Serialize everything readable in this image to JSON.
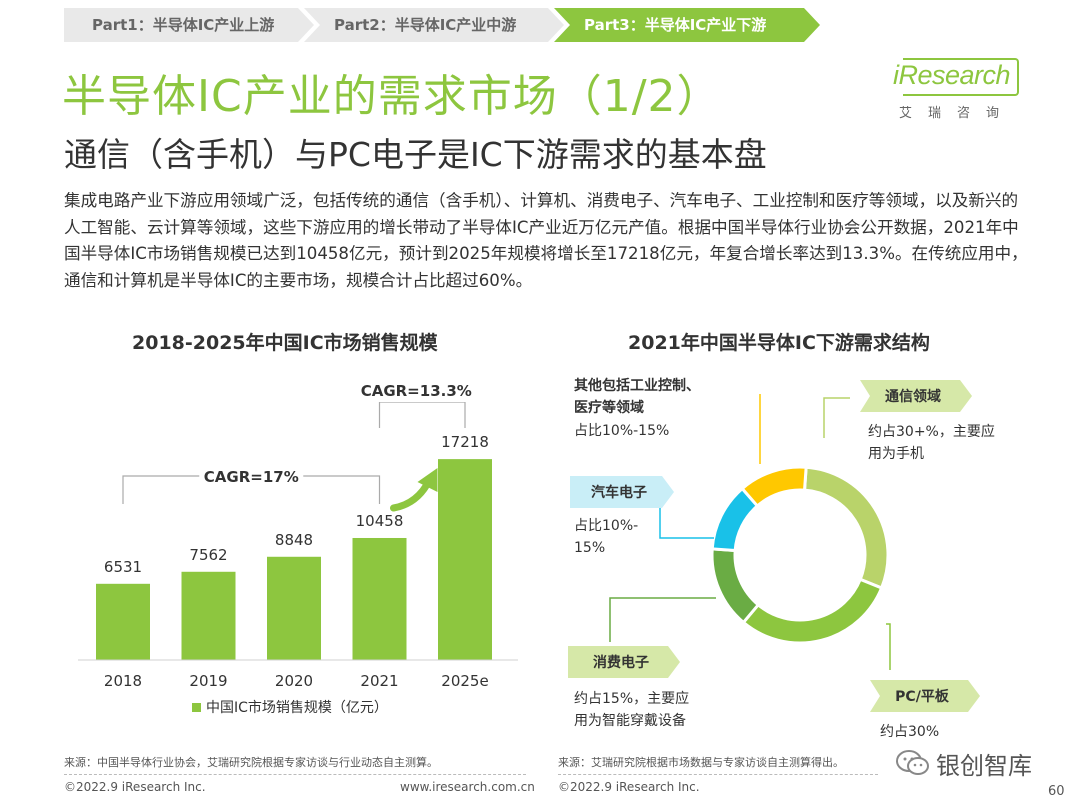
{
  "breadcrumb": [
    {
      "label": "Part1：半导体IC产业上游",
      "active": false
    },
    {
      "label": "Part2：半导体IC产业中游",
      "active": false
    },
    {
      "label": "Part3：半导体IC产业下游",
      "active": true
    }
  ],
  "title": "半导体IC产业的需求市场（1/2）",
  "subtitle": "通信（含手机）与PC电子是IC下游需求的基本盘",
  "logo": {
    "brand": "iResearch",
    "sub": "艾瑞咨询"
  },
  "paragraph": "集成电路产业下游应用领域广泛，包括传统的通信（含手机）、计算机、消费电子、汽车电子、工业控制和医疗等领域，以及新兴的人工智能、云计算等领域，这些下游应用的增长带动了半导体IC产业近万亿元产值。根据中国半导体行业协会公开数据，2021年中国半导体IC市场销售规模已达到10458亿元，预计到2025年规模将增长至17218亿元，年复合增长率达到13.3%。在传统应用中，通信和计算机是半导体IC的主要市场，规模合计占比超过60%。",
  "colors": {
    "accent": "#8dc63f",
    "dark_green": "#6aac44",
    "cyan": "#19c1e8",
    "yellow": "#ffc800",
    "light_green": "#b9d36a"
  },
  "chart_data": [
    {
      "type": "bar",
      "title": "2018-2025年中国IC市场销售规模",
      "categories": [
        "2018",
        "2019",
        "2020",
        "2021",
        "2025e"
      ],
      "series": [
        {
          "name": "中国IC市场销售规模（亿元）",
          "values": [
            6531,
            7562,
            8848,
            10458,
            17218
          ]
        }
      ],
      "annotations": [
        "CAGR=17%",
        "CAGR=13.3%"
      ],
      "ylim": [
        0,
        18000
      ]
    },
    {
      "type": "pie",
      "title": "2021年中国半导体IC下游需求结构",
      "labels": [
        "通信领域",
        "PC/平板",
        "消费电子",
        "汽车电子",
        "其他包括工业控制、医疗等领域"
      ],
      "values": [
        30,
        30,
        15,
        12.5,
        12.5
      ],
      "descriptions": [
        "约占30+%，主要应用为手机",
        "约占30%",
        "约占15%，主要应用为智能穿戴设备",
        "占比10%-15%",
        "占比10%-15%"
      ],
      "colors": [
        "#b9d36a",
        "#8dc63f",
        "#6aac44",
        "#19c1e8",
        "#ffc800"
      ]
    }
  ],
  "sources": {
    "left": "来源：中国半导体行业协会，艾瑞研究院根据专家访谈与行业动态自主测算。",
    "right": "来源：艾瑞研究院根据市场数据与专家访谈自主测算得出。"
  },
  "footer": {
    "copyright": "©2022.9 iResearch Inc.",
    "website": "www.iresearch.com.cn",
    "page": "60",
    "watermark": "银创智库"
  }
}
